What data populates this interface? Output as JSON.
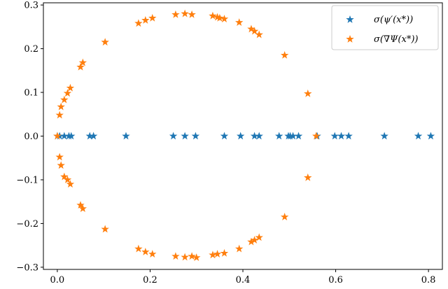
{
  "chart_data": {
    "type": "scatter",
    "title": "",
    "xlabel": "",
    "ylabel": "",
    "xlim": [
      -0.03,
      0.83
    ],
    "ylim": [
      -0.305,
      0.305
    ],
    "grid": false,
    "legend_position": "top-right",
    "xticks": [
      "0.0",
      "0.2",
      "0.4",
      "0.6",
      "0.8"
    ],
    "xtick_values": [
      0.0,
      0.2,
      0.4,
      0.6,
      0.8
    ],
    "yticks": [
      "0.3",
      "0.2",
      "0.1",
      "0.0",
      "−0.1",
      "−0.2",
      "−0.3"
    ],
    "ytick_values": [
      0.3,
      0.2,
      0.1,
      0.0,
      -0.1,
      -0.2,
      -0.3
    ],
    "series": [
      {
        "name": "σ(ψ′(x*))",
        "color": "#1f77b4",
        "marker": "star",
        "points": [
          [
            0.0,
            0.0
          ],
          [
            0.005,
            0.0
          ],
          [
            0.015,
            0.0
          ],
          [
            0.025,
            0.0
          ],
          [
            0.03,
            0.0
          ],
          [
            0.07,
            0.0
          ],
          [
            0.078,
            0.0
          ],
          [
            0.148,
            0.0
          ],
          [
            0.25,
            0.0
          ],
          [
            0.275,
            0.0
          ],
          [
            0.298,
            0.0
          ],
          [
            0.36,
            0.0
          ],
          [
            0.395,
            0.0
          ],
          [
            0.425,
            0.0
          ],
          [
            0.435,
            0.0
          ],
          [
            0.478,
            0.0
          ],
          [
            0.498,
            0.0
          ],
          [
            0.502,
            0.0
          ],
          [
            0.508,
            0.0
          ],
          [
            0.52,
            0.0
          ],
          [
            0.56,
            0.0
          ],
          [
            0.598,
            0.0
          ],
          [
            0.612,
            0.0
          ],
          [
            0.628,
            0.0
          ],
          [
            0.705,
            0.0
          ],
          [
            0.778,
            0.0
          ],
          [
            0.805,
            0.0
          ]
        ]
      },
      {
        "name": "σ(∇Ψ(x*))",
        "color": "#ff7f0e",
        "marker": "star",
        "points": [
          [
            0.0,
            0.0
          ],
          [
            0.005,
            0.048
          ],
          [
            0.008,
            0.067
          ],
          [
            0.015,
            0.083
          ],
          [
            0.022,
            0.098
          ],
          [
            0.028,
            0.11
          ],
          [
            0.05,
            0.158
          ],
          [
            0.055,
            0.168
          ],
          [
            0.103,
            0.215
          ],
          [
            0.175,
            0.258
          ],
          [
            0.19,
            0.265
          ],
          [
            0.205,
            0.27
          ],
          [
            0.255,
            0.278
          ],
          [
            0.275,
            0.28
          ],
          [
            0.29,
            0.278
          ],
          [
            0.335,
            0.275
          ],
          [
            0.345,
            0.272
          ],
          [
            0.35,
            0.27
          ],
          [
            0.36,
            0.268
          ],
          [
            0.392,
            0.26
          ],
          [
            0.418,
            0.245
          ],
          [
            0.425,
            0.24
          ],
          [
            0.435,
            0.232
          ],
          [
            0.49,
            0.185
          ],
          [
            0.54,
            0.097
          ],
          [
            0.558,
            0.0
          ],
          [
            0.005,
            -0.048
          ],
          [
            0.008,
            -0.067
          ],
          [
            0.015,
            -0.093
          ],
          [
            0.022,
            -0.1
          ],
          [
            0.028,
            -0.11
          ],
          [
            0.05,
            -0.158
          ],
          [
            0.055,
            -0.166
          ],
          [
            0.103,
            -0.213
          ],
          [
            0.175,
            -0.258
          ],
          [
            0.19,
            -0.265
          ],
          [
            0.205,
            -0.27
          ],
          [
            0.255,
            -0.275
          ],
          [
            0.275,
            -0.277
          ],
          [
            0.29,
            -0.275
          ],
          [
            0.3,
            -0.278
          ],
          [
            0.335,
            -0.272
          ],
          [
            0.345,
            -0.27
          ],
          [
            0.36,
            -0.268
          ],
          [
            0.392,
            -0.258
          ],
          [
            0.418,
            -0.242
          ],
          [
            0.425,
            -0.238
          ],
          [
            0.435,
            -0.232
          ],
          [
            0.49,
            -0.185
          ],
          [
            0.54,
            -0.095
          ]
        ]
      }
    ]
  }
}
